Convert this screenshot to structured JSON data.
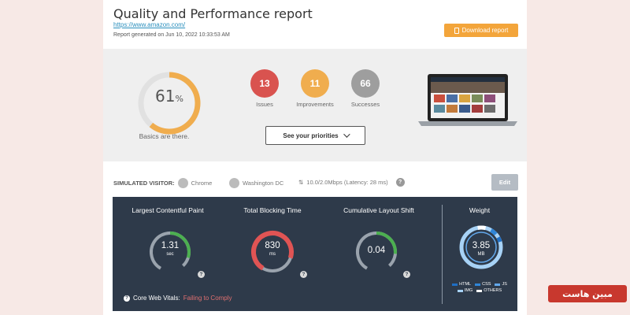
{
  "header": {
    "title": "Quality and Performance report",
    "url": "https://www.amazon.com/",
    "generated": "Report generated on Jun 10, 2022 10:33:53 AM",
    "download_label": "Download report"
  },
  "summary": {
    "score_value": "61",
    "score_unit": "%",
    "score_fraction": 0.61,
    "score_caption": "Basics are there.",
    "counts": [
      {
        "value": "13",
        "label": "Issues",
        "color": "#d9534f"
      },
      {
        "value": "11",
        "label": "Improvements",
        "color": "#f0ad4e"
      },
      {
        "value": "66",
        "label": "Successes",
        "color": "#9e9e9e"
      }
    ],
    "priorities_label": "See your priorities"
  },
  "visitor": {
    "label": "SIMULATED VISITOR:",
    "browser": "Chrome",
    "location": "Washington DC",
    "connection": "10.0/2.0Mbps (Latency: 28 ms)",
    "help": "?",
    "edit_label": "Edit"
  },
  "metrics": {
    "lcp": {
      "title": "Largest Contentful Paint",
      "value": "1.31",
      "unit": "sec",
      "color": "#4caf50"
    },
    "tbt": {
      "title": "Total Blocking Time",
      "value": "830",
      "unit": "ms",
      "color": "#e05454"
    },
    "cls": {
      "title": "Cumulative Layout Shift",
      "value": "0.04",
      "unit": "",
      "color": "#4caf50"
    },
    "weight": {
      "title": "Weight",
      "value": "3.85",
      "unit": "MB"
    },
    "help": "?",
    "legend": [
      "HTML",
      "CSS",
      "JS",
      "IMG",
      "OTHERS"
    ],
    "legend_colors": [
      "#1f6fc5",
      "#2f86d8",
      "#62a8ec",
      "#a7d2f6",
      "#ffffff"
    ],
    "cwv_label": "Core Web Vitals:",
    "cwv_status": "Failing to Comply"
  },
  "watermark": {
    "text": "مبین هاست"
  }
}
